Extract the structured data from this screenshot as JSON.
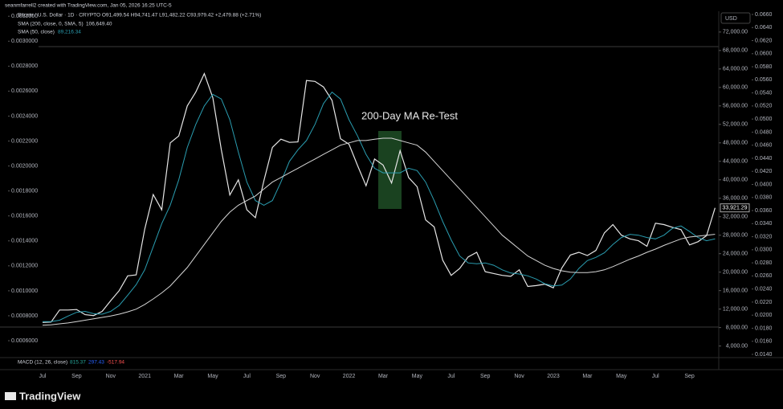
{
  "header": {
    "credit": "seanmfarrell2 created with TradingView.com, Jan 05, 2026 16:25 UTC-5",
    "symbol": "Bitcoin / U.S. Dollar · 1D · CRYPTO   O91,499.54  H94,741.47  L91,482.22  C93,979.42  +2,479.88 (+2.71%)",
    "sma200_name": "SMA (200, close, 0, SMA, 5)",
    "sma200_value": "106,649.40",
    "sma50_name": "SMA (50, close)",
    "sma50_value": "89,216.34",
    "macd_name": "MACD (12, 26, close)",
    "macd_values": [
      "815.37",
      "297.43",
      "-517.94"
    ],
    "currency": "USD",
    "brand": "TradingView"
  },
  "chart_data": {
    "type": "line",
    "annotation": "200-Day MA Re-Test",
    "last_price_label": "33,921.29",
    "categories": [
      "Jul",
      null,
      null,
      null,
      "Sep",
      null,
      null,
      null,
      "Nov",
      null,
      null,
      null,
      "2021",
      null,
      null,
      null,
      "Mar",
      null,
      null,
      null,
      "May",
      null,
      null,
      null,
      "Jul",
      null,
      null,
      null,
      "Sep",
      null,
      null,
      null,
      "Nov",
      null,
      null,
      null,
      "2022",
      null,
      null,
      null,
      "Mar",
      null,
      null,
      null,
      "May",
      null,
      null,
      null,
      "Jul",
      null,
      null,
      null,
      "Sep",
      null,
      null,
      null,
      "Nov",
      null,
      null,
      null,
      "2023",
      null,
      null,
      null,
      "Mar",
      null,
      null,
      null,
      "May",
      null,
      null,
      null,
      "Jul",
      null,
      null,
      null,
      "Sep",
      null,
      null,
      null
    ],
    "series": [
      {
        "name": "Bitcoin / U.S. Dollar",
        "color": "#e6e6e6",
        "values": [
          9100,
          9200,
          11800,
          11800,
          11900,
          10800,
          10600,
          11500,
          13800,
          16000,
          19200,
          19400,
          29300,
          36800,
          33500,
          48000,
          49500,
          56000,
          59000,
          63000,
          57800,
          46500,
          36700,
          40000,
          33500,
          31800,
          39800,
          47000,
          48800,
          48100,
          48200,
          61500,
          61300,
          60100,
          57200,
          48900,
          47700,
          43100,
          38700,
          44500,
          43200,
          39300,
          46300,
          40500,
          38500,
          31300,
          29800,
          22600,
          19300,
          20800,
          23300,
          24300,
          20100,
          19700,
          19300,
          19100,
          20500,
          16900,
          17100,
          17400,
          16600,
          20900,
          23700,
          24300,
          23600,
          24700,
          28500,
          30300,
          28000,
          27200,
          26800,
          25600,
          30600,
          30300,
          29700,
          29200,
          25900,
          26600,
          27900,
          33921.29
        ]
      },
      {
        "name": "SMA (50, close)",
        "color": "#2a9db0",
        "values": [
          9300,
          9300,
          9600,
          10500,
          11300,
          11500,
          11000,
          10900,
          11500,
          12800,
          15000,
          17300,
          20500,
          25500,
          30500,
          34500,
          40000,
          47000,
          52000,
          56000,
          58500,
          57500,
          53000,
          46000,
          39500,
          35500,
          34500,
          35500,
          39500,
          44000,
          46500,
          48500,
          52000,
          56500,
          59000,
          57500,
          53000,
          49500,
          45500,
          42500,
          41500,
          41500,
          41500,
          42500,
          42000,
          39500,
          35500,
          31000,
          27000,
          23500,
          22000,
          21800,
          22000,
          21500,
          20500,
          19800,
          19600,
          19200,
          18500,
          17500,
          17000,
          17200,
          18500,
          20800,
          22500,
          23200,
          24200,
          26000,
          27500,
          28200,
          28000,
          27500,
          27200,
          28000,
          29500,
          30000,
          28800,
          27500,
          26800,
          27200
        ]
      },
      {
        "name": "SMA (200, close, 0, SMA, 5)",
        "color": "#d6d6d6",
        "values": [
          8500,
          8600,
          8800,
          9000,
          9300,
          9600,
          9900,
          10200,
          10500,
          10900,
          11400,
          12000,
          13000,
          14200,
          15500,
          17000,
          19000,
          21000,
          23500,
          26000,
          28500,
          31000,
          33000,
          34500,
          35500,
          36500,
          38000,
          39500,
          40500,
          41500,
          42500,
          43500,
          44500,
          45500,
          46500,
          47500,
          48000,
          48500,
          48500,
          48800,
          49000,
          49000,
          48500,
          48000,
          47500,
          46000,
          44000,
          42000,
          40000,
          38000,
          36000,
          34000,
          32000,
          30000,
          28000,
          26500,
          25000,
          23500,
          22500,
          21500,
          20800,
          20300,
          20000,
          19900,
          19900,
          20100,
          20500,
          21200,
          22000,
          22800,
          23500,
          24300,
          25000,
          25800,
          26500,
          27200,
          27600,
          27800,
          28000,
          28200
        ]
      }
    ],
    "ylim": [
      1500,
      76500
    ],
    "yticks": [
      {
        "value": 4000,
        "label": "4,000.00"
      },
      {
        "value": 8000,
        "label": "8,000.00"
      },
      {
        "value": 12000,
        "label": "12,000.00"
      },
      {
        "value": 16000,
        "label": "16,000.00"
      },
      {
        "value": 20000,
        "label": "20,000.00"
      },
      {
        "value": 24000,
        "label": "24,000.00"
      },
      {
        "value": 28000,
        "label": "28,000.00"
      },
      {
        "value": 32000,
        "label": "32,000.00"
      },
      {
        "value": 36000,
        "label": "36,000.00"
      },
      {
        "value": 40000,
        "label": "40,000.00"
      },
      {
        "value": 44000,
        "label": "44,000.00"
      },
      {
        "value": 48000,
        "label": "48,000.00"
      },
      {
        "value": 52000,
        "label": "52,000.00"
      },
      {
        "value": 56000,
        "label": "56,000.00"
      },
      {
        "value": 60000,
        "label": "60,000.00"
      },
      {
        "value": 64000,
        "label": "64,000.00"
      },
      {
        "value": 68000,
        "label": "68,000.00"
      },
      {
        "value": 72000,
        "label": "72,000.00"
      }
    ],
    "y2lim": [
      0.000465,
      0.00324
    ],
    "y2ticks": [
      {
        "value": 0.0006,
        "label": "0.0006000"
      },
      {
        "value": 0.0008,
        "label": "0.0008000"
      },
      {
        "value": 0.001,
        "label": "0.0010000"
      },
      {
        "value": 0.0012,
        "label": "0.0012000"
      },
      {
        "value": 0.0014,
        "label": "0.0014000"
      },
      {
        "value": 0.0016,
        "label": "0.0016000"
      },
      {
        "value": 0.0018,
        "label": "0.0018000"
      },
      {
        "value": 0.002,
        "label": "0.0020000"
      },
      {
        "value": 0.0022,
        "label": "0.0022000"
      },
      {
        "value": 0.0024,
        "label": "0.0024000"
      },
      {
        "value": 0.0026,
        "label": "0.0026000"
      },
      {
        "value": 0.0028,
        "label": "0.0028000"
      },
      {
        "value": 0.003,
        "label": "0.0030000"
      },
      {
        "value": 0.0032,
        "label": "0.0032000"
      }
    ],
    "y3lim": [
      0.01351,
      0.06649
    ],
    "y3ticks": [
      {
        "value": 0.014,
        "label": "0.0140"
      },
      {
        "value": 0.016,
        "label": "0.0160"
      },
      {
        "value": 0.018,
        "label": "0.0180"
      },
      {
        "value": 0.02,
        "label": "0.0200"
      },
      {
        "value": 0.022,
        "label": "0.0220"
      },
      {
        "value": 0.024,
        "label": "0.0240"
      },
      {
        "value": 0.026,
        "label": "0.0260"
      },
      {
        "value": 0.028,
        "label": "0.0280"
      },
      {
        "value": 0.03,
        "label": "0.0300"
      },
      {
        "value": 0.032,
        "label": "0.0320"
      },
      {
        "value": 0.034,
        "label": "0.0340"
      },
      {
        "value": 0.036,
        "label": "0.0360"
      },
      {
        "value": 0.038,
        "label": "0.0380"
      },
      {
        "value": 0.04,
        "label": "0.0400"
      },
      {
        "value": 0.042,
        "label": "0.0420"
      },
      {
        "value": 0.044,
        "label": "0.0440"
      },
      {
        "value": 0.046,
        "label": "0.0460"
      },
      {
        "value": 0.048,
        "label": "0.0480"
      },
      {
        "value": 0.05,
        "label": "0.0500"
      },
      {
        "value": 0.052,
        "label": "0.0520"
      },
      {
        "value": 0.054,
        "label": "0.0540"
      },
      {
        "value": 0.056,
        "label": "0.0560"
      },
      {
        "value": 0.058,
        "label": "0.0580"
      },
      {
        "value": 0.06,
        "label": "0.0600"
      },
      {
        "value": 0.062,
        "label": "0.0620"
      },
      {
        "value": 0.064,
        "label": "0.0640"
      },
      {
        "value": 0.066,
        "label": "0.0660"
      }
    ]
  }
}
